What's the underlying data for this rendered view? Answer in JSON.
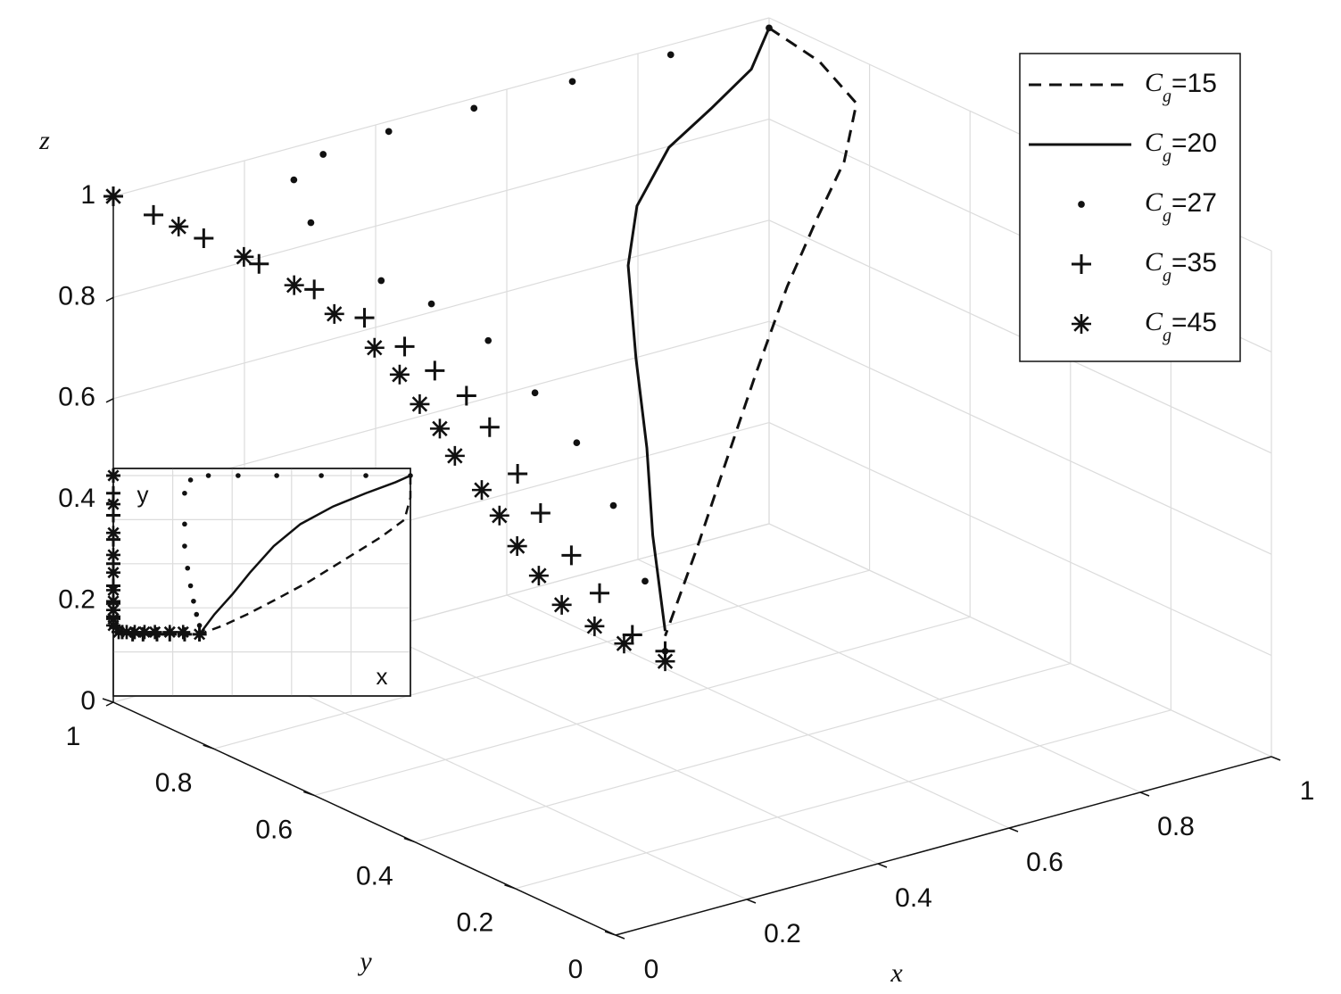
{
  "chart_data": {
    "type": "line3d",
    "xlabel": "x",
    "ylabel": "y",
    "zlabel": "z",
    "xlim": [
      0,
      1
    ],
    "ylim": [
      0,
      1
    ],
    "zlim": [
      0,
      1
    ],
    "xticks": [
      0,
      0.2,
      0.4,
      0.6,
      0.8,
      1
    ],
    "yticks": [
      0,
      0.2,
      0.4,
      0.6,
      0.8,
      1
    ],
    "zticks": [
      0,
      0.2,
      0.4,
      0.6,
      0.8,
      1
    ],
    "grid": true,
    "legend": "upper right",
    "series": [
      {
        "name": "Cg=15",
        "color": "#111",
        "linestyle": "dashed",
        "marker": "none",
        "x": [
          1,
          1,
          0.98,
          0.9,
          0.78,
          0.66,
          0.55,
          0.45,
          0.37,
          0.29
        ],
        "y": [
          1,
          0.9,
          0.8,
          0.72,
          0.62,
          0.52,
          0.44,
          0.37,
          0.32,
          0.28
        ],
        "z": [
          0.98,
          0.96,
          0.93,
          0.88,
          0.85,
          0.81,
          0.71,
          0.6,
          0.49,
          0.36
        ]
      },
      {
        "name": "Cg=20",
        "color": "#111",
        "linestyle": "solid",
        "marker": "none",
        "x": [
          1,
          0.95,
          0.85,
          0.74,
          0.63,
          0.54,
          0.46,
          0.4,
          0.34,
          0.29
        ],
        "y": [
          1,
          0.97,
          0.92,
          0.86,
          0.78,
          0.68,
          0.56,
          0.46,
          0.37,
          0.28
        ],
        "z": [
          0.98,
          0.93,
          0.91,
          0.9,
          0.86,
          0.82,
          0.72,
          0.61,
          0.5,
          0.37
        ]
      },
      {
        "name": "Cg=27",
        "color": "#111",
        "linestyle": "none",
        "marker": "dot",
        "x": [
          1,
          0.85,
          0.7,
          0.55,
          0.42,
          0.32,
          0.26,
          0.24,
          0.24,
          0.24,
          0.25,
          0.26,
          0.27,
          0.28,
          0.29,
          0.29
        ],
        "y": [
          1,
          1,
          1,
          1,
          1,
          1,
          0.98,
          0.92,
          0.78,
          0.68,
          0.58,
          0.5,
          0.43,
          0.37,
          0.32,
          0.28
        ],
        "z": [
          0.98,
          0.98,
          0.98,
          0.98,
          0.98,
          0.97,
          0.95,
          0.9,
          0.85,
          0.85,
          0.82,
          0.75,
          0.68,
          0.58,
          0.45,
          0.33
        ]
      },
      {
        "name": "Cg=35",
        "color": "#111",
        "linestyle": "none",
        "marker": "plus",
        "x": [
          0,
          0,
          0,
          0,
          0,
          0,
          0,
          0,
          0.01,
          0.03,
          0.065,
          0.1,
          0.147,
          0.19,
          0.24,
          0.29
        ],
        "y": [
          1,
          0.92,
          0.82,
          0.71,
          0.6,
          0.5,
          0.42,
          0.36,
          0.31,
          0.29,
          0.28,
          0.28,
          0.28,
          0.28,
          0.28,
          0.28
        ],
        "z": [
          1,
          1,
          1,
          1,
          1,
          0.99,
          0.97,
          0.95,
          0.92,
          0.86,
          0.76,
          0.67,
          0.57,
          0.48,
          0.38,
          0.33
        ]
      },
      {
        "name": "Cg=45",
        "color": "#111",
        "linestyle": "none",
        "marker": "star",
        "x": [
          0,
          0,
          0,
          0,
          0,
          0,
          0,
          0,
          0,
          0,
          0.018,
          0.045,
          0.072,
          0.105,
          0.14,
          0.19,
          0.235,
          0.29
        ],
        "y": [
          1,
          0.87,
          0.74,
          0.64,
          0.56,
          0.48,
          0.43,
          0.39,
          0.35,
          0.32,
          0.29,
          0.29,
          0.29,
          0.29,
          0.29,
          0.29,
          0.29,
          0.28
        ],
        "z": [
          1,
          1,
          1,
          0.99,
          0.97,
          0.94,
          0.91,
          0.87,
          0.84,
          0.8,
          0.74,
          0.68,
          0.61,
          0.54,
          0.47,
          0.41,
          0.36,
          0.31
        ]
      }
    ],
    "inset": {
      "xlabel": "x",
      "ylabel": "y"
    }
  }
}
